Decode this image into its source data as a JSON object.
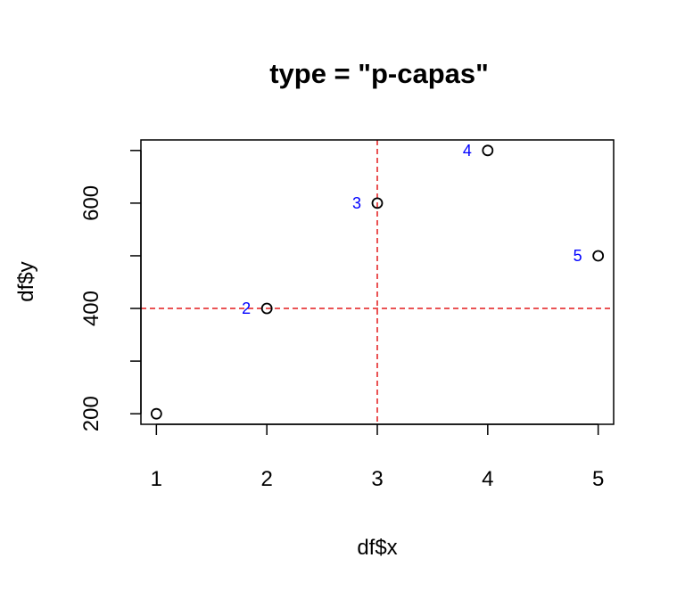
{
  "chart_data": {
    "type": "scatter",
    "title": "type = \"p-capas\"",
    "xlabel": "df$x",
    "ylabel": "df$y",
    "x": [
      1,
      2,
      3,
      4,
      5
    ],
    "y": [
      200,
      400,
      600,
      700,
      500
    ],
    "point_labels": [
      "",
      "2",
      "3",
      "4",
      "5"
    ],
    "xlim": [
      0.86,
      5.14
    ],
    "ylim": [
      180,
      720
    ],
    "x_ticks": [
      1,
      2,
      3,
      4,
      5
    ],
    "x_tick_labels": [
      "1",
      "2",
      "3",
      "4",
      "5"
    ],
    "y_ticks": [
      200,
      300,
      400,
      500,
      600,
      700
    ],
    "y_tick_labels": [
      "200",
      "",
      "400",
      "",
      "600",
      ""
    ],
    "reference_lines": {
      "vertical_x": 3,
      "horizontal_y": 400
    },
    "grid": false,
    "colors": {
      "points": "#000000",
      "labels": "#0000ff",
      "reference_lines": "#e41a1c"
    }
  }
}
